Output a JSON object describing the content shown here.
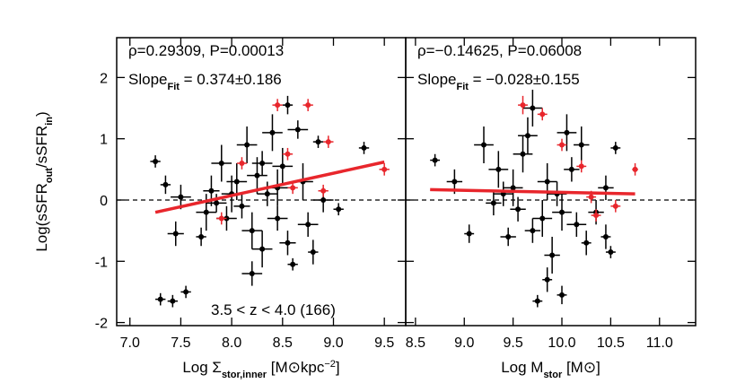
{
  "chart_data": [
    {
      "type": "scatter",
      "xlabel": [
        {
          "text": "Log Σ"
        },
        {
          "text": "stor,inner",
          "script": "sub"
        },
        {
          "text": " [M⊙kpc"
        },
        {
          "text": "−2",
          "script": "sup"
        },
        {
          "text": "]"
        }
      ],
      "ylabel": [
        {
          "text": "Log(sSFR"
        },
        {
          "text": "out",
          "script": "sub"
        },
        {
          "text": "/sSFR"
        },
        {
          "text": "in",
          "script": "sub"
        },
        {
          "text": ")"
        }
      ],
      "correlation": "ρ=0.29309, P=0.00013",
      "slope": [
        {
          "text": "Slope"
        },
        {
          "text": "Fit",
          "script": "sub"
        },
        {
          "text": " = 0.374±0.186"
        }
      ],
      "redshift_label": "3.5 < z < 4.0 (166)",
      "xlim": [
        6.87,
        9.71
      ],
      "ylim": [
        -2.05,
        2.65
      ],
      "xticks": [
        {
          "value": 7.0,
          "label": "7.0"
        },
        7.5,
        {
          "value": 8.0,
          "label": "8.0"
        },
        8.5,
        {
          "value": 9.0,
          "label": "9.0"
        },
        9.5
      ],
      "yticks": [
        -2,
        -1,
        0,
        1,
        2
      ],
      "reference_y": 0,
      "fit": {
        "x": [
          7.25,
          9.5
        ],
        "y": [
          -0.2,
          0.62
        ],
        "color": "#e8262c"
      },
      "series": [
        {
          "color": "#000000",
          "x": [
            7.25,
            7.35,
            7.45,
            7.3,
            7.42,
            7.55,
            7.5,
            7.7,
            7.75,
            7.8,
            7.9,
            7.95,
            8.05,
            8.1,
            8.15,
            8.2,
            8.2,
            8.25,
            8.3,
            8.35,
            8.4,
            8.45,
            8.5,
            8.55,
            8.55,
            8.6,
            8.65,
            8.7,
            8.75,
            8.8,
            8.85,
            8.9,
            9.05,
            9.3,
            8.0,
            8.3,
            7.85,
            8.45
          ],
          "values": [
            0.63,
            0.25,
            -0.55,
            -1.62,
            -1.65,
            -1.5,
            0.05,
            -0.6,
            -0.2,
            0.15,
            0.6,
            -0.3,
            0.3,
            -0.1,
            0.9,
            -0.5,
            -1.2,
            0.4,
            -0.8,
            0.1,
            1.1,
            -0.3,
            0.55,
            1.55,
            -0.7,
            -1.05,
            1.15,
            0.3,
            -0.4,
            -0.85,
            0.95,
            0.0,
            -0.15,
            0.85,
            0.1,
            0.6,
            -0.05,
            0.2
          ],
          "xerr": [
            0.05,
            0.05,
            0.08,
            0.05,
            0.05,
            0.05,
            0.1,
            0.05,
            0.1,
            0.08,
            0.1,
            0.1,
            0.1,
            0.08,
            0.1,
            0.1,
            0.1,
            0.1,
            0.1,
            0.1,
            0.1,
            0.1,
            0.1,
            0.05,
            0.08,
            0.05,
            0.1,
            0.1,
            0.1,
            0.05,
            0.05,
            0.1,
            0.05,
            0.05,
            0.1,
            0.1,
            0.1,
            0.1
          ],
          "yerr": [
            0.1,
            0.15,
            0.2,
            0.1,
            0.1,
            0.1,
            0.2,
            0.15,
            0.3,
            0.25,
            0.3,
            0.2,
            0.3,
            0.2,
            0.3,
            0.3,
            0.2,
            0.3,
            0.3,
            0.2,
            0.3,
            0.2,
            0.3,
            0.15,
            0.2,
            0.1,
            0.15,
            0.3,
            0.2,
            0.2,
            0.1,
            0.2,
            0.1,
            0.1,
            0.3,
            0.2,
            0.15,
            0.3
          ]
        },
        {
          "color": "#e8262c",
          "x": [
            7.9,
            8.1,
            8.45,
            8.55,
            8.75,
            8.95,
            8.9,
            9.5,
            8.6
          ],
          "values": [
            -0.3,
            0.6,
            1.55,
            0.75,
            1.55,
            0.95,
            0.15,
            0.5,
            0.2
          ],
          "xerr": [
            0.05,
            0.05,
            0.05,
            0.05,
            0.05,
            0.05,
            0.05,
            0.05,
            0.05
          ],
          "yerr": [
            0.1,
            0.1,
            0.1,
            0.1,
            0.1,
            0.1,
            0.1,
            0.1,
            0.1
          ]
        }
      ]
    },
    {
      "type": "scatter",
      "xlabel": [
        {
          "text": "Log M"
        },
        {
          "text": "stor",
          "script": "sub"
        },
        {
          "text": " [M⊙]"
        }
      ],
      "correlation": "ρ=−0.14625, P=0.06008",
      "slope": [
        {
          "text": "Slope"
        },
        {
          "text": "Fit",
          "script": "sub"
        },
        {
          "text": " = −0.028±0.155"
        }
      ],
      "xlim": [
        8.4,
        11.37
      ],
      "ylim": [
        -2.05,
        2.65
      ],
      "xticks": [
        8.5,
        {
          "value": 9.0,
          "label": "9.0"
        },
        9.5,
        {
          "value": 10.0,
          "label": "10.0"
        },
        10.5,
        {
          "value": 11.0,
          "label": "11.0"
        }
      ],
      "yticks": [
        -2,
        -1,
        0,
        1,
        2
      ],
      "reference_y": 0,
      "fit": {
        "x": [
          8.65,
          10.75
        ],
        "y": [
          0.17,
          0.1
        ],
        "color": "#e8262c"
      },
      "series": [
        {
          "color": "#000000",
          "x": [
            8.7,
            8.9,
            9.05,
            9.2,
            9.3,
            9.35,
            9.45,
            9.5,
            9.55,
            9.6,
            9.65,
            9.7,
            9.75,
            9.8,
            9.85,
            9.85,
            9.9,
            9.95,
            10.0,
            10.05,
            10.1,
            10.15,
            10.2,
            10.25,
            10.35,
            10.45,
            10.5,
            10.55,
            10.45,
            9.4,
            9.7,
            10.0
          ],
          "values": [
            0.65,
            0.3,
            -0.55,
            0.9,
            -0.05,
            0.5,
            -0.6,
            0.2,
            -0.15,
            0.75,
            1.05,
            -0.5,
            -1.65,
            -0.3,
            -1.3,
            0.3,
            -0.9,
            0.1,
            -0.2,
            1.1,
            0.5,
            -0.4,
            0.9,
            -0.7,
            -0.2,
            -0.6,
            -0.85,
            0.85,
            0.2,
            0.1,
            1.5,
            -1.55
          ],
          "xerr": [
            0.05,
            0.08,
            0.05,
            0.1,
            0.08,
            0.1,
            0.08,
            0.1,
            0.08,
            0.1,
            0.1,
            0.08,
            0.05,
            0.1,
            0.05,
            0.1,
            0.08,
            0.1,
            0.1,
            0.1,
            0.08,
            0.1,
            0.08,
            0.05,
            0.08,
            0.05,
            0.05,
            0.05,
            0.08,
            0.1,
            0.1,
            0.05
          ],
          "yerr": [
            0.1,
            0.2,
            0.15,
            0.3,
            0.2,
            0.3,
            0.15,
            0.3,
            0.2,
            0.3,
            0.3,
            0.2,
            0.1,
            0.3,
            0.2,
            0.3,
            0.3,
            0.2,
            0.3,
            0.3,
            0.2,
            0.2,
            0.3,
            0.2,
            0.2,
            0.2,
            0.1,
            0.1,
            0.2,
            0.2,
            0.3,
            0.15
          ]
        },
        {
          "color": "#e8262c",
          "x": [
            9.6,
            9.8,
            10.0,
            10.2,
            10.35,
            10.55,
            10.75,
            10.3
          ],
          "values": [
            1.55,
            1.4,
            0.9,
            0.55,
            -0.25,
            -0.1,
            0.5,
            0.05
          ],
          "xerr": [
            0.05,
            0.05,
            0.05,
            0.05,
            0.05,
            0.05,
            0.03,
            0.05
          ],
          "yerr": [
            0.15,
            0.1,
            0.1,
            0.1,
            0.1,
            0.1,
            0.1,
            0.1
          ]
        }
      ]
    }
  ]
}
